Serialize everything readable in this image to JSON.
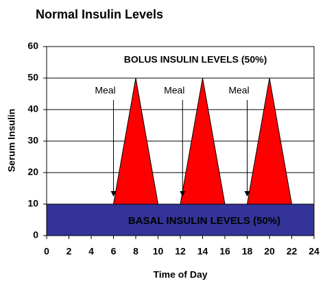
{
  "chart_data": {
    "type": "area",
    "title": "Normal Insulin Levels",
    "y_label": "Serum Insulin",
    "x_label": "Time of Day",
    "xlim": [
      0,
      24
    ],
    "xticks": [
      0,
      2,
      4,
      6,
      8,
      10,
      12,
      14,
      16,
      18,
      20,
      22,
      24
    ],
    "ylim": [
      0,
      60
    ],
    "yticks": [
      0,
      10,
      20,
      30,
      40,
      50,
      60
    ],
    "grid": true,
    "series": [
      {
        "name": "BASAL INSULIN LEVELS (50%)",
        "color": "#333399",
        "x": [
          0,
          24
        ],
        "values": [
          10,
          10
        ]
      },
      {
        "name": "BOLUS INSULIN LEVELS (50%)",
        "color": "#ff0000",
        "base": 10,
        "x": [
          6,
          8,
          10,
          12,
          14,
          16,
          18,
          20,
          22
        ],
        "values": [
          10,
          50,
          10,
          10,
          50,
          10,
          10,
          50,
          10
        ]
      }
    ],
    "annotations": [
      {
        "text": "Meal",
        "x": 6,
        "y": 10
      },
      {
        "text": "Meal",
        "x": 12.2,
        "y": 10
      },
      {
        "text": "Meal",
        "x": 18,
        "y": 10
      }
    ]
  }
}
